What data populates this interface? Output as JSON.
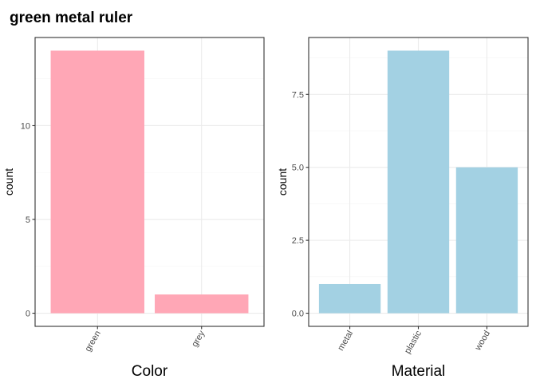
{
  "title": "green metal ruler",
  "colors": {
    "color_bars": "#ffa7b6",
    "material_bars": "#a3d1e3",
    "grid_major": "#ebebeb",
    "grid_minor": "#f5f5f5",
    "panel_border": "#333333",
    "tick_label": "#4d4d4d"
  },
  "chart_data": [
    {
      "type": "bar",
      "categories": [
        "green",
        "grey"
      ],
      "values": [
        14,
        1
      ],
      "xlabel": "Color",
      "ylabel": "count",
      "ylim": [
        -0.7,
        14.7
      ],
      "yticks": [
        0,
        5,
        10
      ],
      "ytick_labels": [
        "0",
        "5",
        "10"
      ],
      "grid": true,
      "legend": "none"
    },
    {
      "type": "bar",
      "categories": [
        "metal",
        "plastic",
        "wood"
      ],
      "values": [
        1,
        9,
        5
      ],
      "xlabel": "Material",
      "ylabel": "count",
      "ylim": [
        -0.45,
        9.45
      ],
      "yticks": [
        0,
        2.5,
        5,
        7.5
      ],
      "ytick_labels": [
        "0.0",
        "2.5",
        "5.0",
        "7.5"
      ],
      "grid": true,
      "legend": "none"
    }
  ]
}
